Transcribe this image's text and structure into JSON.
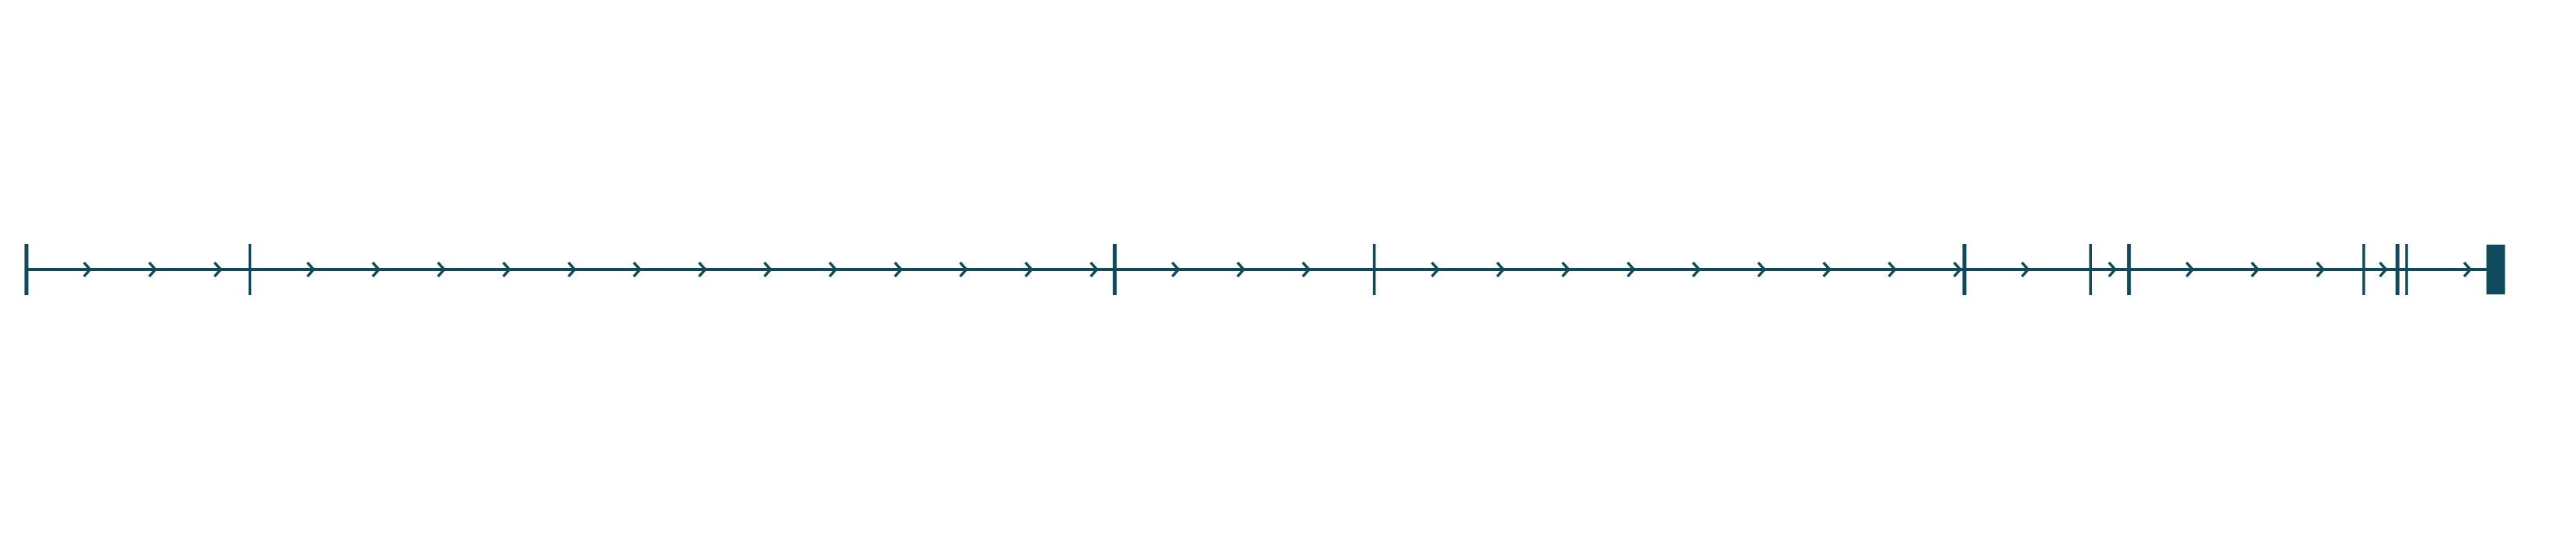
{
  "diagram": {
    "type": "feature-track",
    "orientation": "horizontal",
    "strand": "forward",
    "color": "#0f4a5c",
    "span": [
      0,
      1
    ],
    "segments": [
      {
        "kind": "exon-boundary",
        "position": 0.0
      },
      {
        "kind": "exon-boundary",
        "position": 0.0902
      },
      {
        "kind": "exon-boundary",
        "position": 0.4393
      },
      {
        "kind": "exon-boundary",
        "position": 0.5441
      },
      {
        "kind": "exon-boundary",
        "position": 0.7823
      },
      {
        "kind": "exon-boundary",
        "position": 0.8332
      },
      {
        "kind": "exon-boundary",
        "position": 0.8487
      },
      {
        "kind": "exon-boundary",
        "position": 0.9435
      },
      {
        "kind": "exon-boundary",
        "position": 0.9571
      },
      {
        "kind": "exon-boundary",
        "position": 0.9608
      }
    ],
    "end_block": {
      "kind": "terminal-exon",
      "start": 0.993,
      "end": 1.0
    }
  }
}
